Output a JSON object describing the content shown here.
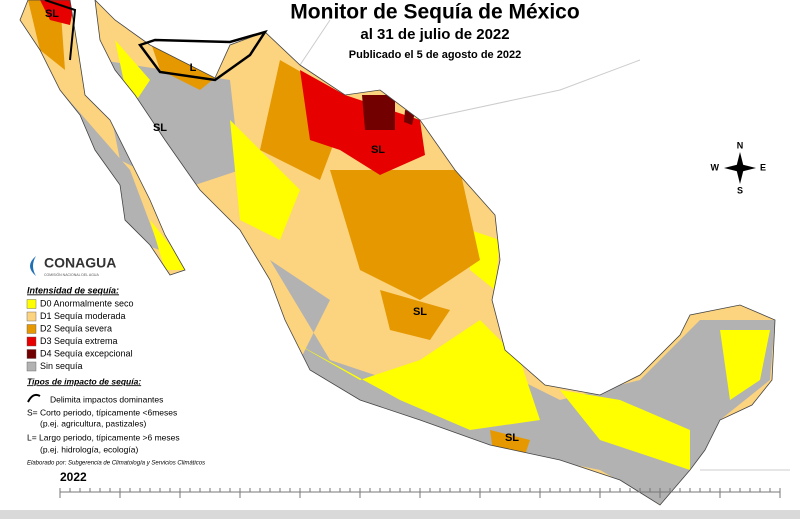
{
  "header": {
    "title": "Monitor de Sequía de México",
    "subtitle": "al 31 de julio de 2022",
    "published": "Publicado el 5 de agosto de 2022"
  },
  "logo": {
    "name": "CONAGUA",
    "tagline": "COMISIÓN NACIONAL DEL AGUA"
  },
  "legend": {
    "heading": "Intensidad de sequía:",
    "items": [
      {
        "label": "D0 Anormalmente seco",
        "color": "#ffff00"
      },
      {
        "label": "D1 Sequía moderada",
        "color": "#fcd37f"
      },
      {
        "label": "D2 Sequía severa",
        "color": "#e69800"
      },
      {
        "label": "D3 Sequía extrema",
        "color": "#e60000"
      },
      {
        "label": "D4 Sequía excepcional",
        "color": "#730000"
      },
      {
        "label": "Sin sequía",
        "color": "#b2b2b2"
      }
    ]
  },
  "impacts": {
    "heading": "Tipos de impacto de sequía:",
    "line_label": "Delimita impactos dominantes",
    "short": [
      "S= Corto periodo, típicamente <6meses",
      "(p.ej. agricultura, pastizales)"
    ],
    "long": [
      "L= Largo periodo, típicamente >6 meses",
      "(p.ej. hidrología, ecología)"
    ]
  },
  "credit": "Elaborado por: Subgerencia de Climatología y Servicios Climáticos",
  "year": "2022",
  "map_labels": [
    "SL",
    "L",
    "SL",
    "SL",
    "SL",
    "SL"
  ],
  "compass": {
    "n": "N",
    "s": "S",
    "e": "E",
    "w": "W"
  }
}
